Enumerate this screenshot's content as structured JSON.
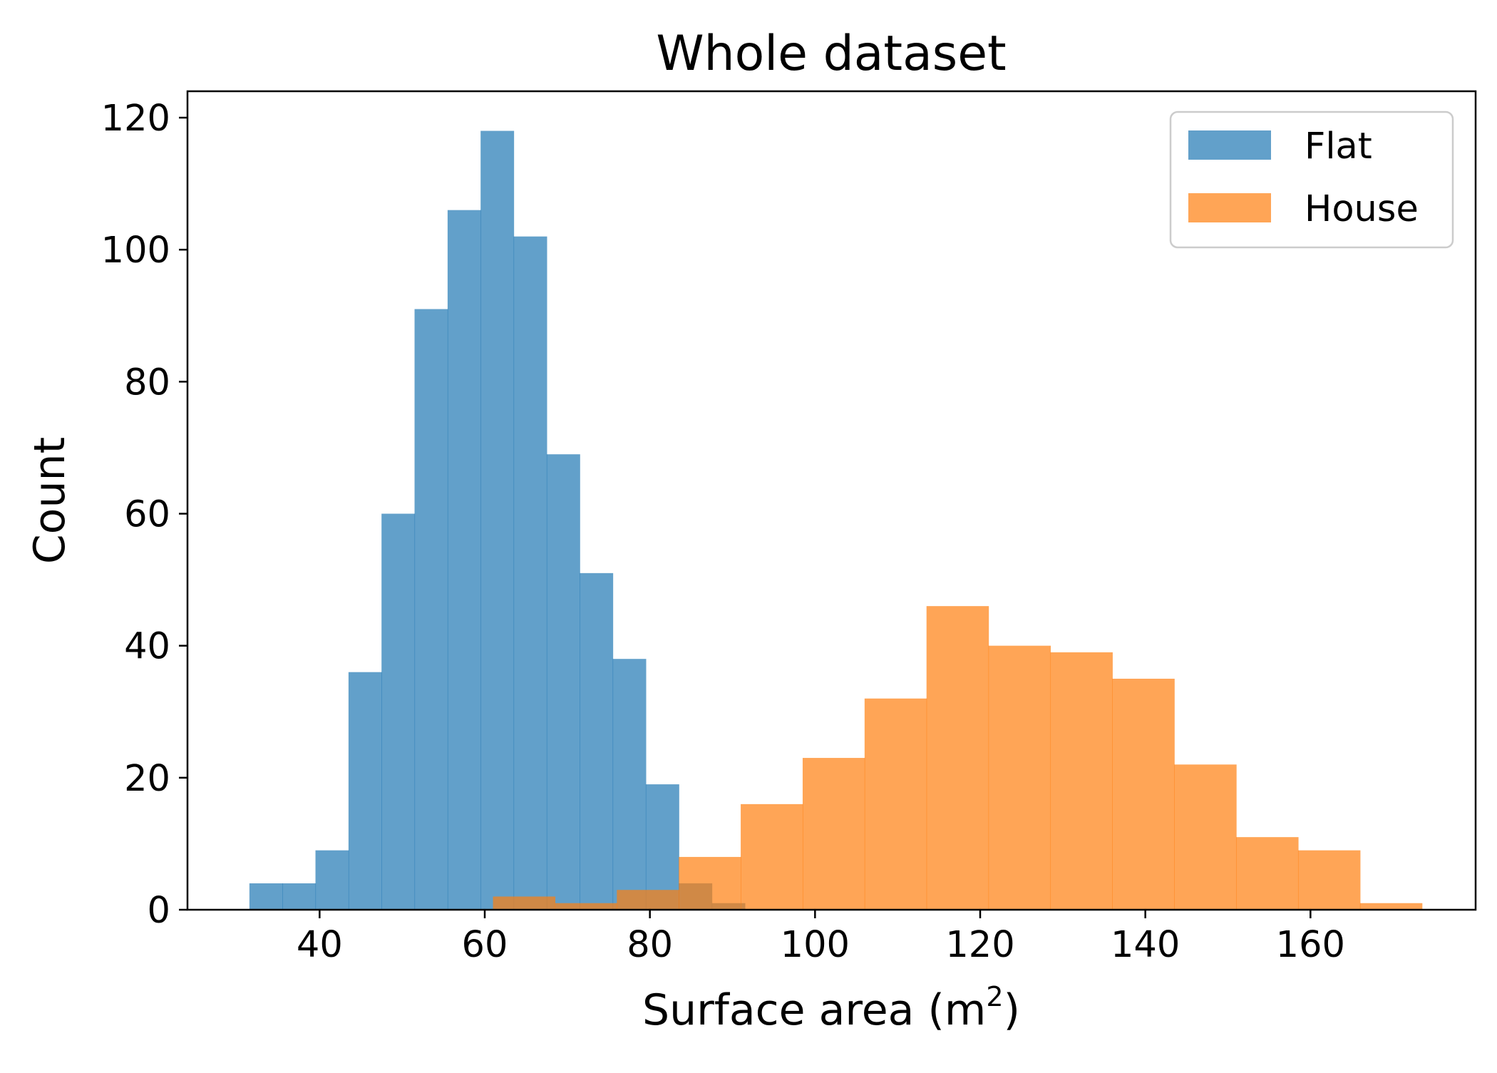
{
  "chart_data": {
    "type": "histogram",
    "title": "Whole dataset",
    "xlabel": "Surface area (m",
    "xlabel_superscript": "2",
    "xlabel_suffix": ")",
    "ylabel": "Count",
    "xlim": [
      24,
      180
    ],
    "ylim": [
      0,
      124
    ],
    "xticks": [
      40,
      60,
      80,
      100,
      120,
      140,
      160
    ],
    "yticks": [
      0,
      20,
      40,
      60,
      80,
      100,
      120
    ],
    "legend_position": "top-right",
    "series": [
      {
        "name": "Flat",
        "color": "#1f77b4",
        "opacity": 0.7,
        "bin_edges": [
          31.5,
          35.5,
          39.5,
          43.5,
          47.5,
          51.5,
          55.5,
          59.5,
          63.5,
          67.5,
          71.5,
          75.5,
          79.5,
          83.5,
          87.5,
          91.5
        ],
        "counts": [
          4,
          4,
          9,
          36,
          60,
          91,
          106,
          118,
          102,
          69,
          51,
          38,
          19,
          4,
          1
        ]
      },
      {
        "name": "House",
        "color": "#ff7f0e",
        "opacity": 0.7,
        "bin_edges": [
          61.0,
          68.5,
          76.0,
          83.5,
          91.0,
          98.5,
          106.0,
          113.5,
          121.0,
          128.5,
          136.0,
          143.5,
          151.0,
          158.5,
          166.0,
          173.5
        ],
        "counts": [
          2,
          1,
          3,
          8,
          16,
          23,
          32,
          46,
          40,
          39,
          35,
          22,
          11,
          9,
          1
        ]
      }
    ]
  }
}
